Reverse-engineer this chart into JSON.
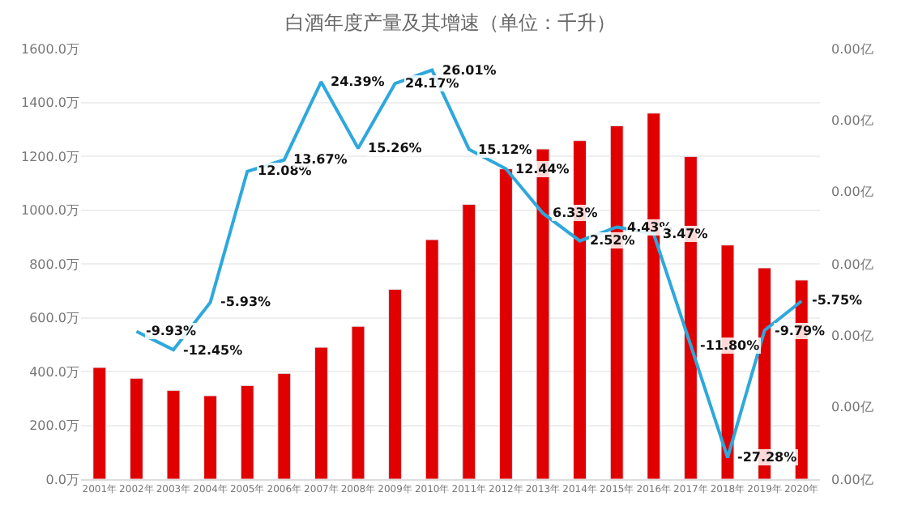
{
  "chart_data": {
    "type": "bar",
    "title": "白酒年度产量及其增速（单位：千升）",
    "categories": [
      "2001年",
      "2002年",
      "2003年",
      "2004年",
      "2005年",
      "2006年",
      "2007年",
      "2008年",
      "2009年",
      "2010年",
      "2011年",
      "2012年",
      "2013年",
      "2014年",
      "2015年",
      "2016年",
      "2017年",
      "2018年",
      "2019年",
      "2020年"
    ],
    "series": [
      {
        "color": "#e00000",
        "values": [
          415,
          375,
          330,
          310,
          348,
          393,
          490,
          568,
          705,
          890,
          1021,
          1153,
          1227,
          1258,
          1313,
          1360,
          1199,
          870,
          785,
          740
        ]
      },
      {
        "type": "line",
        "axis": "y2",
        "color": "#2ea8dc",
        "marker": "none",
        "line_style": "solid",
        "values": [
          null,
          -9.93,
          -12.45,
          -5.93,
          12.08,
          13.67,
          24.39,
          15.26,
          24.17,
          26.01,
          15.12,
          12.44,
          6.33,
          2.52,
          4.43,
          3.47,
          -11.8,
          -27.28,
          -9.79,
          -5.75
        ],
        "value_labels": [
          null,
          "-9.93%",
          "-12.45%",
          "-5.93%",
          "12.08%",
          "13.67%",
          "24.39%",
          "15.26%",
          "24.17%",
          "26.01%",
          "15.12%",
          "12.44%",
          "6.33%",
          "2.52%",
          "4.43%",
          "3.47%",
          "-11.80%",
          "-27.28%",
          "-9.79%",
          "-5.75%"
        ]
      }
    ],
    "ylim": [
      0,
      1600
    ],
    "yticks": [
      {
        "value": 0,
        "label": "0.0万"
      },
      {
        "value": 200,
        "label": "200.0万"
      },
      {
        "value": 400,
        "label": "400.0万"
      },
      {
        "value": 600,
        "label": "600.0万"
      },
      {
        "value": 800,
        "label": "800.0万"
      },
      {
        "value": 1000,
        "label": "1000.0万"
      },
      {
        "value": 1200,
        "label": "1200.0万"
      },
      {
        "value": 1400,
        "label": "1400.0万"
      },
      {
        "value": 1600,
        "label": "1600.0万"
      }
    ],
    "annotations": [
      "0.00亿",
      "0.00亿",
      "0.00亿",
      "0.00亿",
      "0.00亿",
      "0.00亿",
      "0.00亿"
    ],
    "grid": "y"
  }
}
